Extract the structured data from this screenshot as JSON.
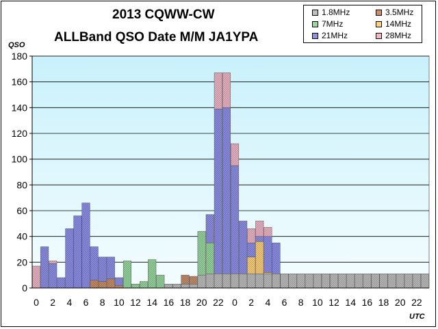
{
  "chart_data": {
    "type": "bar",
    "stacked": true,
    "title_lines": [
      "2013 CQWW-CW",
      "ALLBand QSO Date M/M JA1YPA"
    ],
    "ylabel": "QSO",
    "xlabel": "UTC",
    "ylim": [
      0,
      180
    ],
    "yticks": [
      0,
      20,
      40,
      60,
      80,
      100,
      120,
      140,
      160,
      180
    ],
    "grid": true,
    "legend_position": "top-right",
    "categories": [
      "0",
      "1",
      "2",
      "3",
      "4",
      "5",
      "6",
      "7",
      "8",
      "9",
      "10",
      "11",
      "12",
      "13",
      "14",
      "15",
      "16",
      "17",
      "18",
      "19",
      "20",
      "21",
      "22",
      "23",
      "0",
      "1",
      "2",
      "3",
      "4",
      "5",
      "6",
      "7",
      "8",
      "9",
      "10",
      "11",
      "12",
      "13",
      "14",
      "15",
      "16",
      "17",
      "18",
      "19",
      "20",
      "21",
      "22",
      "23"
    ],
    "tick_labels": [
      "0",
      "2",
      "4",
      "6",
      "8",
      "10",
      "12",
      "14",
      "16",
      "18",
      "20",
      "22",
      "0",
      "2",
      "4",
      "6",
      "8",
      "10",
      "12",
      "14",
      "16",
      "18",
      "20",
      "22"
    ],
    "series": [
      {
        "name": "1.8MHz",
        "color": "#bfbfbf",
        "values": [
          0,
          0,
          0,
          0,
          0,
          0,
          0,
          0,
          0,
          0,
          0,
          0,
          0,
          0,
          0,
          0,
          3,
          3,
          3,
          3,
          10,
          11,
          11,
          11,
          11,
          11,
          11,
          11,
          11,
          11,
          11,
          11,
          11,
          11,
          11,
          11,
          11,
          11,
          11,
          11,
          11,
          11,
          11,
          11,
          11,
          11,
          11,
          11
        ]
      },
      {
        "name": "3.5MHz",
        "color": "#c8906a",
        "values": [
          0,
          0,
          0,
          0,
          0,
          0,
          0,
          6,
          5,
          7,
          2,
          0,
          0,
          0,
          0,
          0,
          0,
          0,
          7,
          6,
          0,
          0,
          0,
          0,
          0,
          0,
          0,
          0,
          0,
          0,
          0,
          0,
          0,
          0,
          0,
          0,
          0,
          0,
          0,
          0,
          0,
          0,
          0,
          0,
          0,
          0,
          0,
          0
        ]
      },
      {
        "name": "7MHz",
        "color": "#99d9a0",
        "values": [
          0,
          0,
          0,
          0,
          0,
          0,
          0,
          0,
          0,
          0,
          0,
          21,
          3,
          5,
          22,
          10,
          0,
          0,
          0,
          0,
          34,
          24,
          0,
          0,
          0,
          0,
          0,
          0,
          0,
          0,
          0,
          0,
          0,
          0,
          0,
          0,
          0,
          0,
          0,
          0,
          0,
          0,
          0,
          0,
          0,
          0,
          0,
          0
        ]
      },
      {
        "name": "14MHz",
        "color": "#ffd27f",
        "values": [
          0,
          0,
          0,
          0,
          0,
          0,
          0,
          0,
          0,
          0,
          0,
          0,
          0,
          0,
          0,
          0,
          0,
          0,
          0,
          0,
          0,
          0,
          0,
          0,
          0,
          0,
          13,
          25,
          1,
          0,
          0,
          0,
          0,
          0,
          0,
          0,
          0,
          0,
          0,
          0,
          0,
          0,
          0,
          0,
          0,
          0,
          0,
          0
        ]
      },
      {
        "name": "21MHz",
        "color": "#8f91e8",
        "values": [
          0,
          32,
          19,
          8,
          46,
          56,
          66,
          26,
          19,
          17,
          6,
          0,
          0,
          0,
          0,
          0,
          0,
          0,
          0,
          0,
          0,
          22,
          128,
          129,
          84,
          41,
          11,
          4,
          28,
          24,
          0,
          0,
          0,
          0,
          0,
          0,
          0,
          0,
          0,
          0,
          0,
          0,
          0,
          0,
          0,
          0,
          0,
          0
        ]
      },
      {
        "name": "28MHz",
        "color": "#f0b8c8",
        "values": [
          17,
          0,
          2,
          0,
          0,
          0,
          0,
          0,
          0,
          0,
          0,
          0,
          0,
          0,
          0,
          0,
          0,
          0,
          0,
          0,
          0,
          0,
          28,
          27,
          17,
          0,
          11,
          12,
          7,
          0,
          0,
          0,
          0,
          0,
          0,
          0,
          0,
          0,
          0,
          0,
          0,
          0,
          0,
          0,
          0,
          0,
          0,
          0
        ]
      }
    ]
  }
}
